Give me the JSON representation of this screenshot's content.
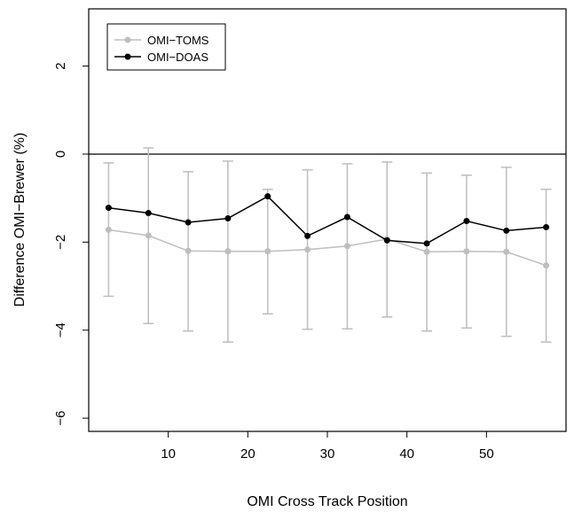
{
  "chart_data": {
    "type": "line",
    "title": "",
    "xlabel": "OMI Cross Track Position",
    "ylabel": "Difference OMI−Brewer (%)",
    "xlim": [
      0,
      60
    ],
    "ylim": [
      -6.3,
      3.3
    ],
    "x_ticks": [
      10,
      20,
      30,
      40,
      50
    ],
    "y_ticks": [
      -6,
      -4,
      -2,
      0,
      2
    ],
    "reference_line_y": 0,
    "legend_position": "top-left",
    "grid": false,
    "x": [
      2.5,
      7.5,
      12.5,
      17.5,
      22.5,
      27.5,
      32.5,
      37.5,
      42.5,
      47.5,
      52.5,
      57.5
    ],
    "series": [
      {
        "name": "OMI−TOMS",
        "color": "#bebebe",
        "values": [
          -1.72,
          -1.85,
          -2.2,
          -2.21,
          -2.21,
          -2.17,
          -2.09,
          -1.93,
          -2.22,
          -2.21,
          -2.22,
          -2.53
        ],
        "error_low": [
          -3.23,
          -3.85,
          -4.02,
          -4.27,
          -3.63,
          -3.98,
          -3.97,
          -3.7,
          -4.02,
          -3.95,
          -4.14,
          -4.27
        ],
        "error_high": [
          -0.2,
          0.14,
          -0.4,
          -0.16,
          -0.8,
          -0.36,
          -0.22,
          -0.18,
          -0.43,
          -0.48,
          -0.3,
          -0.8
        ]
      },
      {
        "name": "OMI−DOAS",
        "color": "#000000",
        "values": [
          -1.22,
          -1.34,
          -1.55,
          -1.46,
          -0.96,
          -1.86,
          -1.43,
          -1.96,
          -2.03,
          -1.52,
          -1.74,
          -1.66
        ]
      }
    ]
  }
}
